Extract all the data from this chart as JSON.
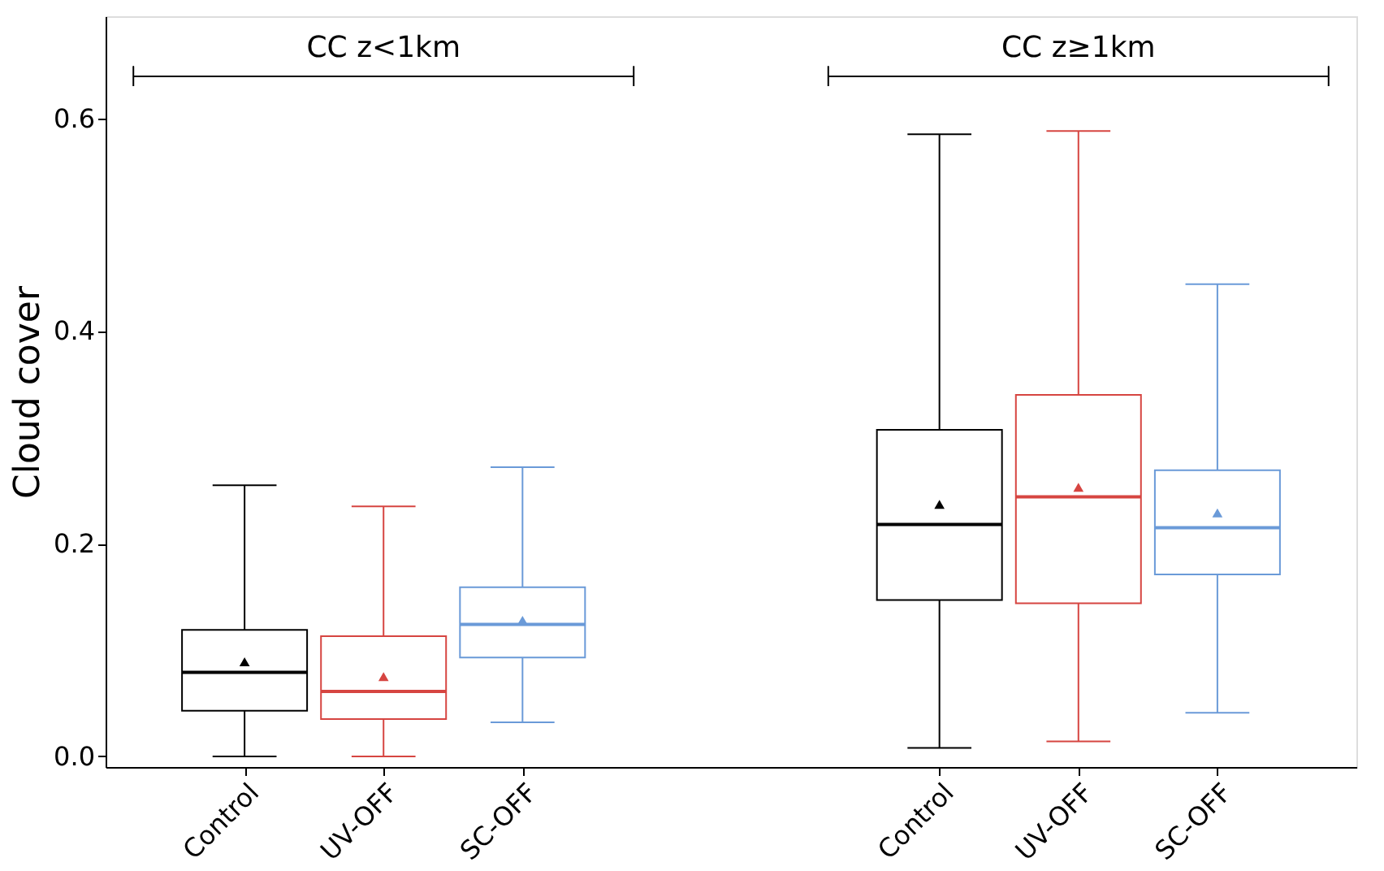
{
  "chart_data": {
    "type": "box",
    "ylabel": "Cloud cover",
    "categories": [
      "Control",
      "UV-OFF",
      "SC-OFF",
      null,
      null,
      "Control",
      "UV-OFF",
      "SC-OFF"
    ],
    "colors": [
      "#000000",
      "#d64541",
      "#6a9ad8",
      null,
      null,
      "#000000",
      "#d64541",
      "#6a9ad8"
    ],
    "boxes": [
      {
        "low": 0.0,
        "q1": 0.043,
        "median": 0.079,
        "q3": 0.119,
        "high": 0.255,
        "mean": 0.089
      },
      {
        "low": 0.0,
        "q1": 0.035,
        "median": 0.061,
        "q3": 0.113,
        "high": 0.235,
        "mean": 0.075
      },
      {
        "low": 0.032,
        "q1": 0.093,
        "median": 0.124,
        "q3": 0.159,
        "high": 0.272,
        "mean": 0.128
      },
      null,
      null,
      {
        "low": 0.008,
        "q1": 0.147,
        "median": 0.218,
        "q3": 0.307,
        "high": 0.585,
        "mean": 0.237
      },
      {
        "low": 0.014,
        "q1": 0.144,
        "median": 0.244,
        "q3": 0.34,
        "high": 0.588,
        "mean": 0.253
      },
      {
        "low": 0.041,
        "q1": 0.171,
        "median": 0.215,
        "q3": 0.269,
        "high": 0.444,
        "mean": 0.229
      }
    ],
    "annotations": [
      "CC z<1km",
      "CC z≥1km"
    ],
    "ylim": [
      -0.01,
      0.696
    ],
    "yticks": [
      {
        "value": 0,
        "label": "0.0"
      },
      0.2,
      0.4,
      0.6
    ],
    "marker": "triangle",
    "grid": false
  }
}
